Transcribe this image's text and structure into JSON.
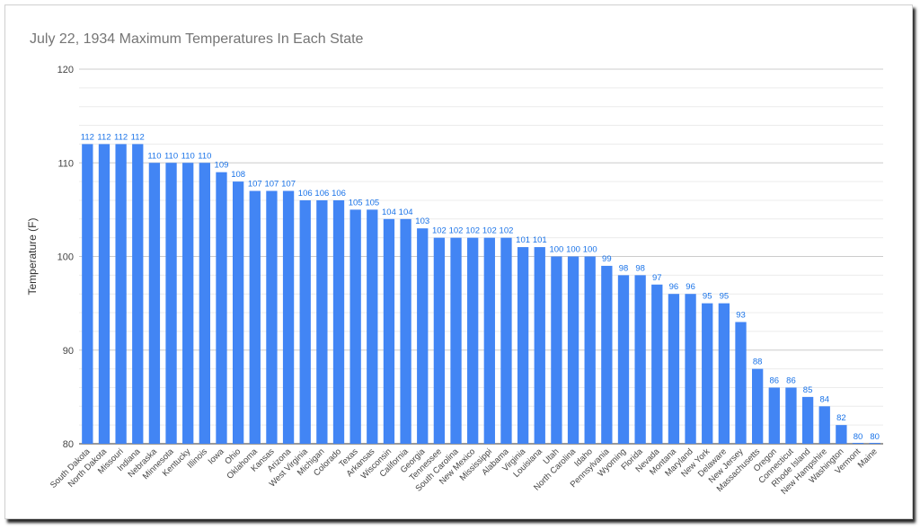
{
  "chart_data": {
    "type": "bar",
    "title": "July 22, 1934 Maximum Temperatures In Each State",
    "xlabel": "",
    "ylabel": "Temperature (F)",
    "ylim": [
      80,
      120
    ],
    "yticks": [
      "80",
      "90",
      "100",
      "110",
      "120"
    ],
    "grid": true,
    "bar_color": "#4285f4",
    "label_color": "#1a73e8",
    "categories": [
      "South Dakota",
      "North Dakota",
      "Missouri",
      "Indiana",
      "Nebraska",
      "Minnesota",
      "Kentucky",
      "Illinois",
      "Iowa",
      "Ohio",
      "Oklahoma",
      "Kansas",
      "Arizona",
      "West Virginia",
      "Michigan",
      "Colorado",
      "Texas",
      "Arkansas",
      "Wisconsin",
      "California",
      "Georgia",
      "Tennessee",
      "South Carolina",
      "New Mexico",
      "Mississippi",
      "Alabama",
      "Virginia",
      "Louisiana",
      "Utah",
      "North Carolina",
      "Idaho",
      "Pennsylvania",
      "Wyoming",
      "Florida",
      "Nevada",
      "Montana",
      "Maryland",
      "New York",
      "Delaware",
      "New Jersey",
      "Massachusetts",
      "Oregon",
      "Connecticut",
      "Rhode Island",
      "New Hampshire",
      "Washington",
      "Vermont",
      "Maine"
    ],
    "values": [
      112,
      112,
      112,
      112,
      110,
      110,
      110,
      110,
      109,
      108,
      107,
      107,
      107,
      106,
      106,
      106,
      105,
      105,
      104,
      104,
      103,
      102,
      102,
      102,
      102,
      102,
      101,
      101,
      100,
      100,
      100,
      99,
      98,
      98,
      97,
      96,
      96,
      95,
      95,
      93,
      88,
      86,
      86,
      85,
      84,
      82,
      80,
      80
    ]
  }
}
